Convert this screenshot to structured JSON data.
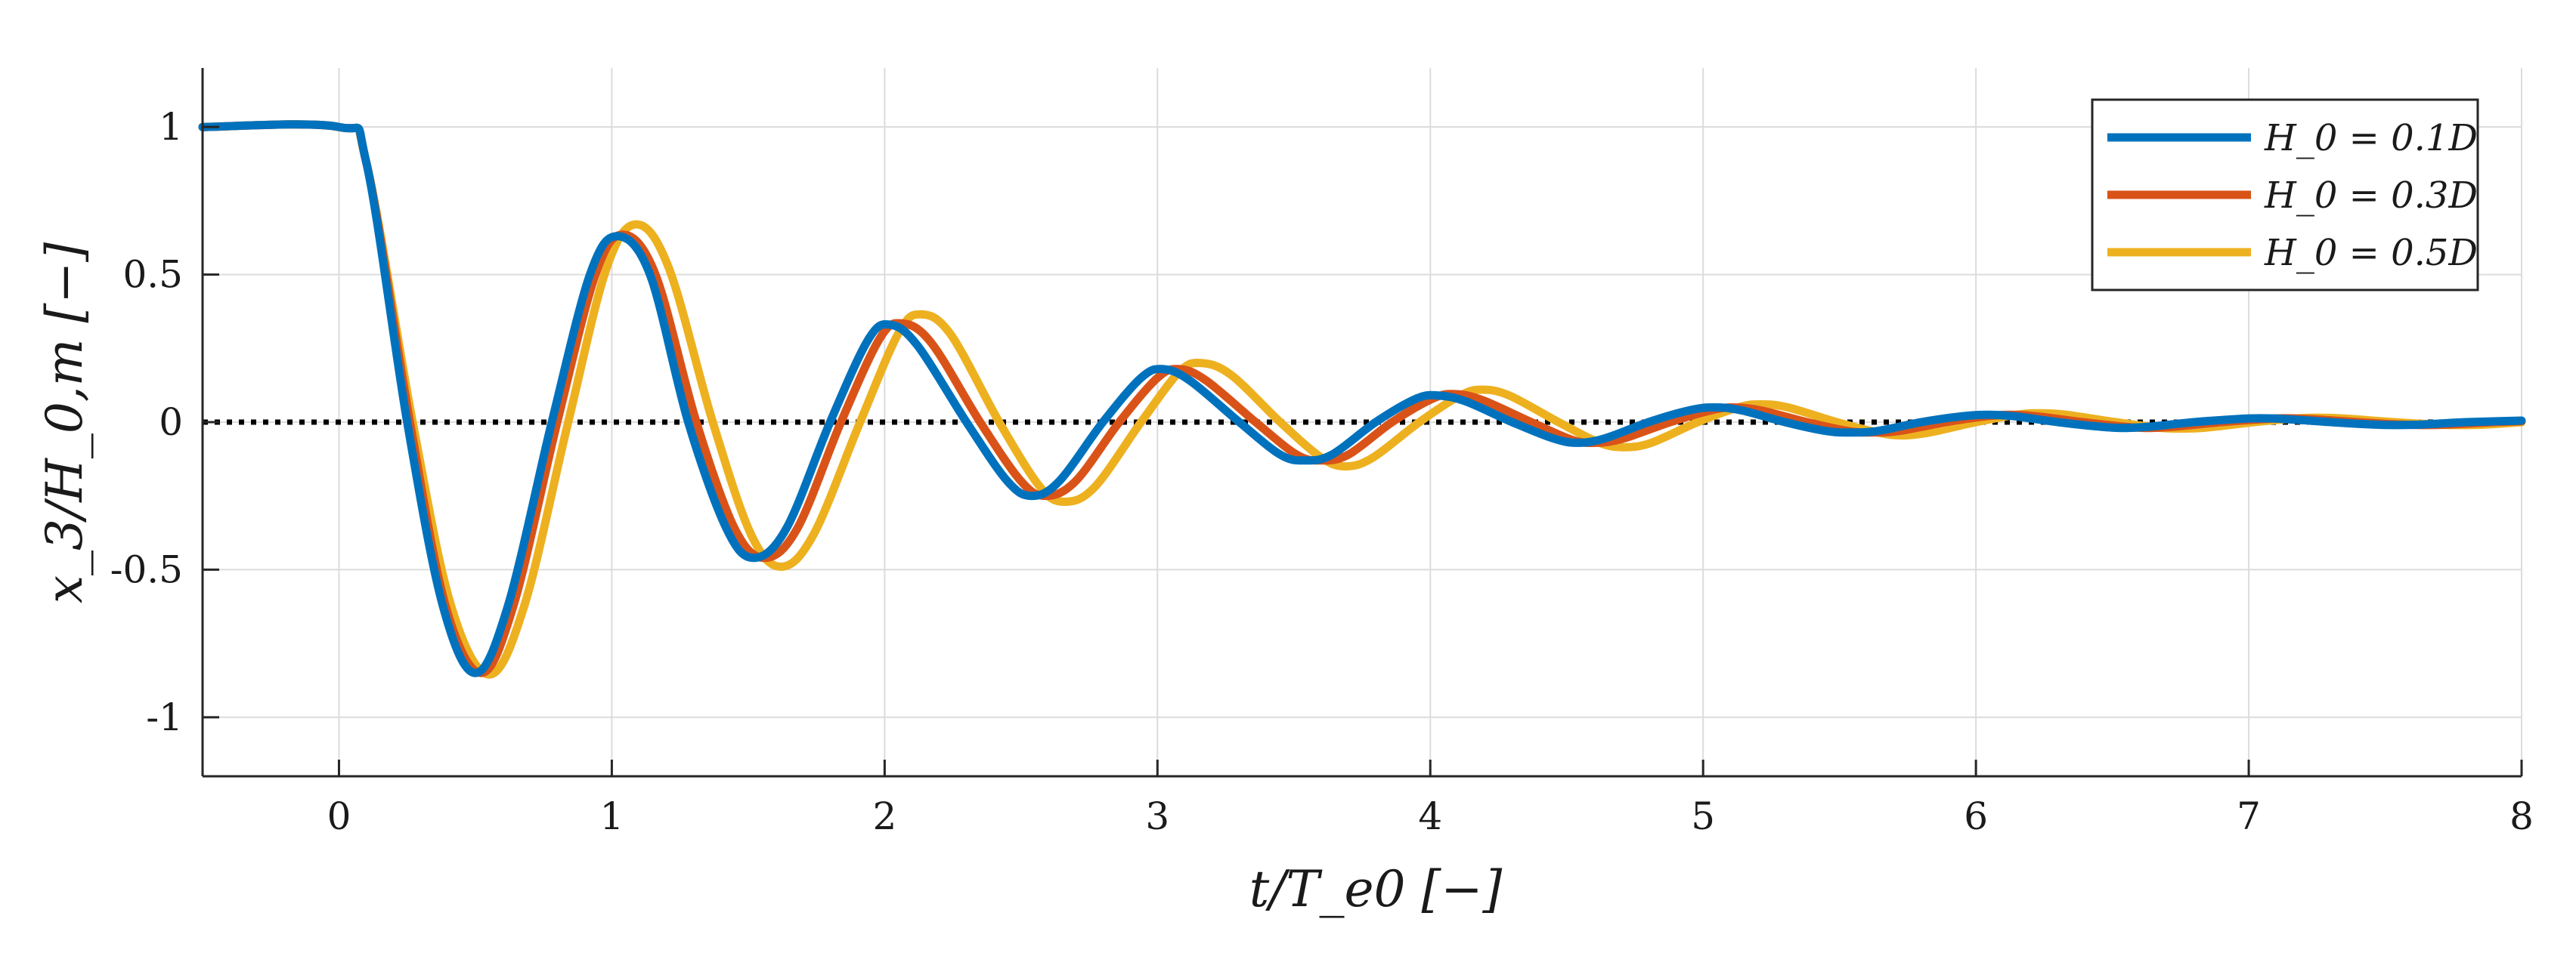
{
  "chart_data": {
    "type": "line",
    "title": "",
    "xlabel": "t/T_e0 [−]",
    "ylabel": "x_3/H_0,m [−]",
    "xlim": [
      -0.5,
      8
    ],
    "ylim": [
      -1.2,
      1.2
    ],
    "xticks": [
      0,
      1,
      2,
      3,
      4,
      5,
      6,
      7,
      8
    ],
    "xtick_labels": [
      "0",
      "1",
      "2",
      "3",
      "4",
      "5",
      "6",
      "7",
      "8"
    ],
    "yticks": [
      -1,
      -0.5,
      0,
      0.5,
      1
    ],
    "ytick_labels": [
      "-1",
      "-0.5",
      "0",
      "0.5",
      "1"
    ],
    "grid": true,
    "legend_position": "top-right",
    "reference_line": {
      "y": 0,
      "style": "dotted",
      "color": "#000000"
    },
    "series": [
      {
        "name": "H_0 = 0.1D",
        "color": "#0072BD",
        "points": [
          [
            -0.5,
            1
          ],
          [
            0,
            1
          ],
          [
            0.1,
            0.88
          ],
          [
            0.25,
            0
          ],
          [
            0.38,
            -0.62
          ],
          [
            0.5,
            -0.85
          ],
          [
            0.62,
            -0.62
          ],
          [
            0.78,
            0
          ],
          [
            0.92,
            0.5
          ],
          [
            1.02,
            0.63
          ],
          [
            1.14,
            0.5
          ],
          [
            1.28,
            0
          ],
          [
            1.42,
            -0.36
          ],
          [
            1.52,
            -0.46
          ],
          [
            1.64,
            -0.36
          ],
          [
            1.8,
            0
          ],
          [
            1.94,
            0.28
          ],
          [
            2.02,
            0.33
          ],
          [
            2.12,
            0.26
          ],
          [
            2.3,
            0
          ],
          [
            2.45,
            -0.2
          ],
          [
            2.54,
            -0.25
          ],
          [
            2.64,
            -0.2
          ],
          [
            2.8,
            0
          ],
          [
            2.94,
            0.15
          ],
          [
            3.02,
            0.18
          ],
          [
            3.12,
            0.14
          ],
          [
            3.3,
            0
          ],
          [
            3.45,
            -0.11
          ],
          [
            3.54,
            -0.13
          ],
          [
            3.64,
            -0.11
          ],
          [
            3.8,
            0
          ],
          [
            3.95,
            0.08
          ],
          [
            4.03,
            0.09
          ],
          [
            4.13,
            0.07
          ],
          [
            4.3,
            0
          ],
          [
            4.45,
            -0.055
          ],
          [
            4.54,
            -0.07
          ],
          [
            4.64,
            -0.055
          ],
          [
            4.8,
            0
          ],
          [
            4.95,
            0.04
          ],
          [
            5.04,
            0.05
          ],
          [
            5.14,
            0.04
          ],
          [
            5.3,
            0
          ],
          [
            5.45,
            -0.03
          ],
          [
            5.54,
            -0.035
          ],
          [
            5.64,
            -0.03
          ],
          [
            5.8,
            0
          ],
          [
            5.95,
            0.02
          ],
          [
            6.04,
            0.025
          ],
          [
            6.14,
            0.02
          ],
          [
            6.3,
            0
          ],
          [
            6.45,
            -0.015
          ],
          [
            6.54,
            -0.02
          ],
          [
            6.64,
            -0.015
          ],
          [
            6.8,
            0
          ],
          [
            6.95,
            0.01
          ],
          [
            7.04,
            0.013
          ],
          [
            7.14,
            0.01
          ],
          [
            7.3,
            0
          ],
          [
            7.45,
            -0.008
          ],
          [
            7.54,
            -0.01
          ],
          [
            7.64,
            -0.008
          ],
          [
            7.8,
            0
          ],
          [
            8,
            0.005
          ]
        ]
      },
      {
        "name": "H_0 = 0.3D",
        "color": "#D95319",
        "points": [
          [
            -0.5,
            1
          ],
          [
            0,
            1
          ],
          [
            0.1,
            0.88
          ],
          [
            0.26,
            0
          ],
          [
            0.39,
            -0.62
          ],
          [
            0.52,
            -0.85
          ],
          [
            0.64,
            -0.62
          ],
          [
            0.8,
            0
          ],
          [
            0.94,
            0.5
          ],
          [
            1.04,
            0.635
          ],
          [
            1.16,
            0.5
          ],
          [
            1.31,
            0
          ],
          [
            1.45,
            -0.36
          ],
          [
            1.56,
            -0.46
          ],
          [
            1.68,
            -0.36
          ],
          [
            1.84,
            0
          ],
          [
            1.98,
            0.28
          ],
          [
            2.06,
            0.335
          ],
          [
            2.17,
            0.27
          ],
          [
            2.35,
            0
          ],
          [
            2.5,
            -0.2
          ],
          [
            2.59,
            -0.25
          ],
          [
            2.7,
            -0.2
          ],
          [
            2.86,
            0
          ],
          [
            3.0,
            0.15
          ],
          [
            3.08,
            0.18
          ],
          [
            3.18,
            0.14
          ],
          [
            3.36,
            0
          ],
          [
            3.51,
            -0.11
          ],
          [
            3.6,
            -0.13
          ],
          [
            3.7,
            -0.11
          ],
          [
            3.86,
            0
          ],
          [
            4.01,
            0.08
          ],
          [
            4.09,
            0.095
          ],
          [
            4.19,
            0.075
          ],
          [
            4.37,
            0
          ],
          [
            4.52,
            -0.06
          ],
          [
            4.61,
            -0.07
          ],
          [
            4.71,
            -0.055
          ],
          [
            4.88,
            0
          ],
          [
            5.03,
            0.04
          ],
          [
            5.11,
            0.05
          ],
          [
            5.21,
            0.04
          ],
          [
            5.38,
            0
          ],
          [
            5.53,
            -0.03
          ],
          [
            5.62,
            -0.035
          ],
          [
            5.72,
            -0.03
          ],
          [
            5.89,
            0
          ],
          [
            6.04,
            0.02
          ],
          [
            6.12,
            0.025
          ],
          [
            6.22,
            0.02
          ],
          [
            6.39,
            0
          ],
          [
            6.54,
            -0.015
          ],
          [
            6.63,
            -0.02
          ],
          [
            6.73,
            -0.015
          ],
          [
            6.9,
            0
          ],
          [
            7.05,
            0.01
          ],
          [
            7.13,
            0.013
          ],
          [
            7.23,
            0.01
          ],
          [
            7.4,
            0
          ],
          [
            7.55,
            -0.008
          ],
          [
            7.64,
            -0.01
          ],
          [
            7.74,
            -0.008
          ],
          [
            7.9,
            0
          ],
          [
            8,
            0.003
          ]
        ]
      },
      {
        "name": "H_0 = 0.5D",
        "color": "#EDB120",
        "points": [
          [
            -0.5,
            1
          ],
          [
            0,
            1
          ],
          [
            0.1,
            0.88
          ],
          [
            0.27,
            0
          ],
          [
            0.41,
            -0.62
          ],
          [
            0.55,
            -0.855
          ],
          [
            0.68,
            -0.62
          ],
          [
            0.84,
            0
          ],
          [
            0.98,
            0.52
          ],
          [
            1.09,
            0.67
          ],
          [
            1.21,
            0.52
          ],
          [
            1.37,
            0
          ],
          [
            1.51,
            -0.38
          ],
          [
            1.62,
            -0.49
          ],
          [
            1.74,
            -0.38
          ],
          [
            1.91,
            0
          ],
          [
            2.05,
            0.3
          ],
          [
            2.13,
            0.365
          ],
          [
            2.24,
            0.3
          ],
          [
            2.42,
            0
          ],
          [
            2.57,
            -0.22
          ],
          [
            2.66,
            -0.27
          ],
          [
            2.77,
            -0.22
          ],
          [
            2.94,
            0
          ],
          [
            3.08,
            0.17
          ],
          [
            3.16,
            0.2
          ],
          [
            3.27,
            0.16
          ],
          [
            3.45,
            0
          ],
          [
            3.6,
            -0.12
          ],
          [
            3.69,
            -0.15
          ],
          [
            3.79,
            -0.12
          ],
          [
            3.96,
            0
          ],
          [
            4.11,
            0.09
          ],
          [
            4.19,
            0.11
          ],
          [
            4.29,
            0.09
          ],
          [
            4.47,
            0
          ],
          [
            4.62,
            -0.07
          ],
          [
            4.71,
            -0.085
          ],
          [
            4.81,
            -0.07
          ],
          [
            4.98,
            0
          ],
          [
            5.13,
            0.05
          ],
          [
            5.21,
            0.06
          ],
          [
            5.31,
            0.05
          ],
          [
            5.49,
            0
          ],
          [
            5.64,
            -0.035
          ],
          [
            5.73,
            -0.045
          ],
          [
            5.83,
            -0.035
          ],
          [
            6.0,
            0
          ],
          [
            6.15,
            0.025
          ],
          [
            6.23,
            0.03
          ],
          [
            6.33,
            0.025
          ],
          [
            6.51,
            0
          ],
          [
            6.66,
            -0.018
          ],
          [
            6.75,
            -0.022
          ],
          [
            6.85,
            -0.018
          ],
          [
            7.02,
            0
          ],
          [
            7.17,
            0.012
          ],
          [
            7.25,
            0.015
          ],
          [
            7.35,
            0.012
          ],
          [
            7.53,
            0
          ],
          [
            7.68,
            -0.008
          ],
          [
            7.77,
            -0.01
          ],
          [
            7.87,
            -0.008
          ],
          [
            8,
            0
          ]
        ]
      }
    ]
  }
}
